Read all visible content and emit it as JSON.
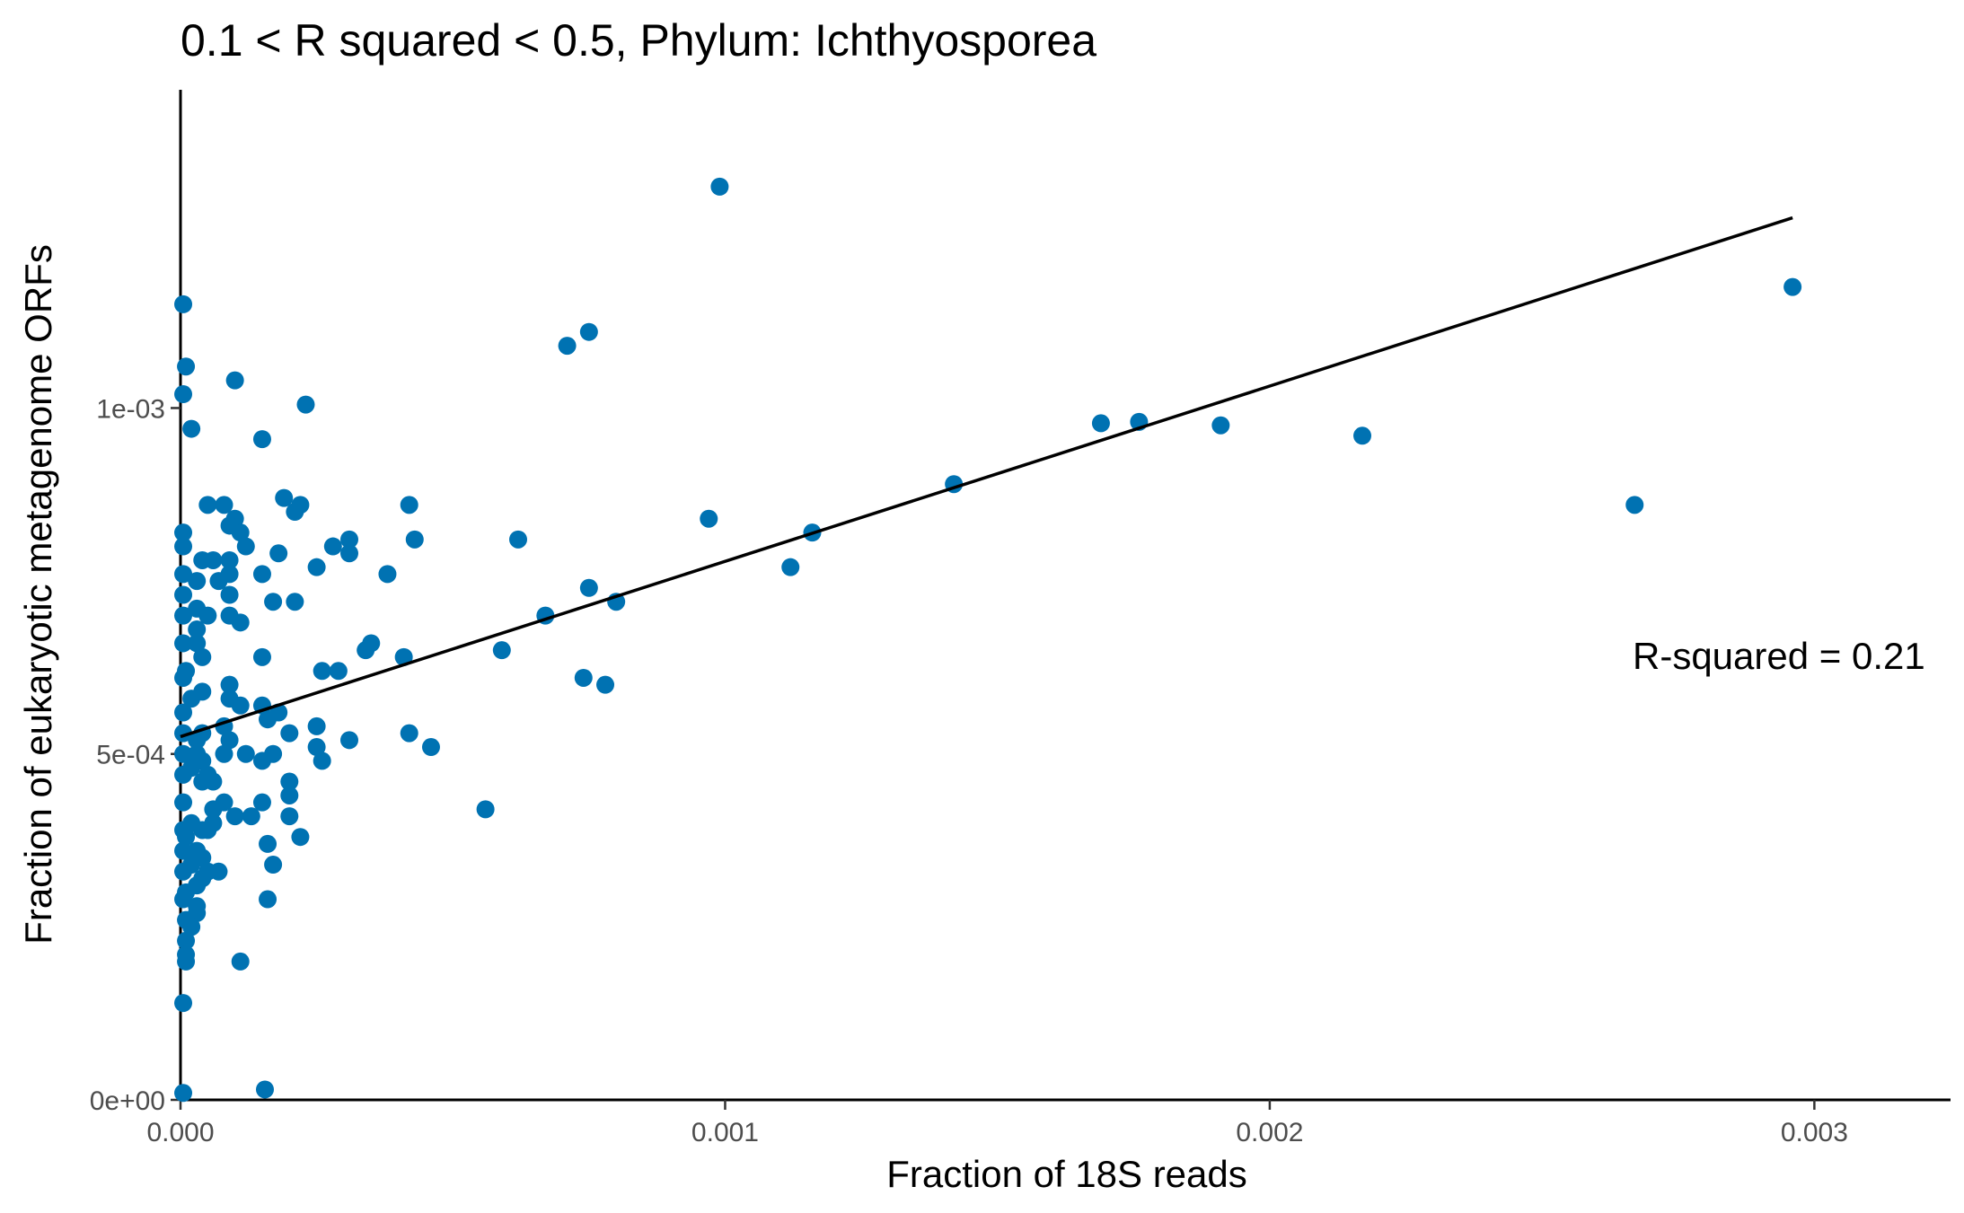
{
  "chart_data": {
    "type": "scatter",
    "title": "0.1 < R squared < 0.5, Phylum:  Ichthyosporea",
    "xlabel": "Fraction of 18S reads",
    "ylabel": "Fraction of eukaryotic metagenome ORFs",
    "xlim": [
      0,
      0.00325
    ],
    "ylim": [
      0,
      0.00146
    ],
    "x_ticks": [
      0,
      0.001,
      0.002,
      0.003
    ],
    "x_tick_labels": [
      "0.000",
      "0.001",
      "0.002",
      "0.003"
    ],
    "y_ticks": [
      0,
      0.0005,
      0.001
    ],
    "y_tick_labels": [
      "0e+00",
      "5e-04",
      "1e-03"
    ],
    "grid": false,
    "point_color": "#0072b2",
    "line_color": "#000000",
    "annotation": "R-squared =  0.21",
    "fit_line": {
      "x": [
        0,
        0.00296
      ],
      "y": [
        0.000525,
        0.001275
      ]
    },
    "points": [
      [
        0.00099,
        0.00132
      ],
      [
        0.00296,
        0.001175
      ],
      [
        0.00075,
        0.00111
      ],
      [
        0.00071,
        0.00109
      ],
      [
        0.00176,
        0.00098
      ],
      [
        0.00169,
        0.000978
      ],
      [
        0.00191,
        0.000975
      ],
      [
        0.00217,
        0.00096
      ],
      [
        0.00142,
        0.00089
      ],
      [
        0.00267,
        0.00086
      ],
      [
        0.00097,
        0.00084
      ],
      [
        0.00116,
        0.00082
      ],
      [
        0.00112,
        0.00077
      ],
      [
        0.00062,
        0.00081
      ],
      [
        0.0008,
        0.00072
      ],
      [
        0.00075,
        0.00074
      ],
      [
        0.00067,
        0.0007
      ],
      [
        0.00059,
        0.00065
      ],
      [
        0.00074,
        0.00061
      ],
      [
        0.00078,
        0.0006
      ],
      [
        0.00056,
        0.00042
      ],
      [
        0.00043,
        0.00081
      ],
      [
        0.00042,
        0.00086
      ],
      [
        0.00038,
        0.00076
      ],
      [
        0.00041,
        0.00064
      ],
      [
        0.00042,
        0.00053
      ],
      [
        0.00046,
        0.00051
      ],
      [
        0.00034,
        0.00065
      ],
      [
        0.00035,
        0.00066
      ],
      [
        0.00031,
        0.00081
      ],
      [
        0.00031,
        0.00079
      ],
      [
        0.00028,
        0.0008
      ],
      [
        0.00025,
        0.00077
      ],
      [
        0.00026,
        0.00062
      ],
      [
        0.00029,
        0.00062
      ],
      [
        0.00031,
        0.00052
      ],
      [
        0.00025,
        0.00054
      ],
      [
        0.00025,
        0.00051
      ],
      [
        0.00026,
        0.00049
      ],
      [
        0.00023,
        0.001005
      ],
      [
        0.00022,
        0.00086
      ],
      [
        0.00021,
        0.00085
      ],
      [
        0.00019,
        0.00087
      ],
      [
        0.00018,
        0.00079
      ],
      [
        0.00021,
        0.00072
      ],
      [
        0.00017,
        0.00072
      ],
      [
        0.00015,
        0.000955
      ],
      [
        0.0001,
        0.00104
      ],
      [
        0.00015,
        0.00076
      ],
      [
        0.00015,
        0.00064
      ],
      [
        0.00018,
        0.00056
      ],
      [
        0.00015,
        0.00057
      ],
      [
        0.00016,
        0.00055
      ],
      [
        0.0002,
        0.00053
      ],
      [
        0.00017,
        0.0005
      ],
      [
        0.00015,
        0.00049
      ],
      [
        0.0002,
        0.00046
      ],
      [
        0.0002,
        0.00044
      ],
      [
        0.00015,
        0.00043
      ],
      [
        0.0002,
        0.00041
      ],
      [
        0.00022,
        0.00038
      ],
      [
        0.00013,
        0.00041
      ],
      [
        0.00016,
        0.00037
      ],
      [
        0.00017,
        0.00034
      ],
      [
        0.00016,
        0.00029
      ],
      [
        0.00011,
        0.0002
      ],
      [
        0.000155,
        1.5e-05
      ],
      [
        0.00012,
        0.0008
      ],
      [
        0.00011,
        0.00082
      ],
      [
        0.0001,
        0.00084
      ],
      [
        9e-05,
        0.00083
      ],
      [
        8e-05,
        0.00086
      ],
      [
        5e-05,
        0.00086
      ],
      [
        9e-05,
        0.00078
      ],
      [
        6e-05,
        0.00078
      ],
      [
        4e-05,
        0.00078
      ],
      [
        9e-05,
        0.00076
      ],
      [
        7e-05,
        0.00075
      ],
      [
        9e-05,
        0.00073
      ],
      [
        9e-05,
        0.0007
      ],
      [
        0.00011,
        0.00069
      ],
      [
        5e-05,
        0.0007
      ],
      [
        3e-05,
        0.00071
      ],
      [
        3e-05,
        0.00068
      ],
      [
        3e-05,
        0.00066
      ],
      [
        4e-05,
        0.00064
      ],
      [
        1e-05,
        0.00062
      ],
      [
        4e-05,
        0.00059
      ],
      [
        9e-05,
        0.0006
      ],
      [
        9e-05,
        0.00058
      ],
      [
        0.00011,
        0.00057
      ],
      [
        2e-05,
        0.00058
      ],
      [
        8e-05,
        0.00054
      ],
      [
        9e-05,
        0.00052
      ],
      [
        4e-05,
        0.00053
      ],
      [
        3e-05,
        0.00052
      ],
      [
        8e-05,
        0.0005
      ],
      [
        0.00012,
        0.0005
      ],
      [
        3e-05,
        0.0005
      ],
      [
        4e-05,
        0.00049
      ],
      [
        2e-05,
        0.00048
      ],
      [
        5e-05,
        0.00047
      ],
      [
        4e-05,
        0.00046
      ],
      [
        6e-05,
        0.00046
      ],
      [
        8e-05,
        0.00043
      ],
      [
        6e-05,
        0.00042
      ],
      [
        0.0001,
        0.00041
      ],
      [
        6e-05,
        0.0004
      ],
      [
        5e-05,
        0.00039
      ],
      [
        4e-05,
        0.00039
      ],
      [
        2e-05,
        0.0004
      ],
      [
        1e-05,
        0.00038
      ],
      [
        3e-05,
        0.00036
      ],
      [
        4e-05,
        0.00035
      ],
      [
        2e-05,
        0.00034
      ],
      [
        7e-05,
        0.00033
      ],
      [
        5e-05,
        0.00033
      ],
      [
        4e-05,
        0.00032
      ],
      [
        3e-05,
        0.00031
      ],
      [
        1e-05,
        0.0003
      ],
      [
        3e-05,
        0.00028
      ],
      [
        3e-05,
        0.00027
      ],
      [
        1e-05,
        0.00026
      ],
      [
        2e-05,
        0.00025
      ],
      [
        1e-05,
        0.00023
      ],
      [
        1e-05,
        0.00021
      ],
      [
        1e-05,
        0.0002
      ],
      [
        3e-05,
        0.00075
      ],
      [
        5e-06,
        0.0008
      ],
      [
        5e-06,
        0.00082
      ],
      [
        5e-06,
        0.00076
      ],
      [
        5e-06,
        0.00073
      ],
      [
        5e-06,
        0.0007
      ],
      [
        5e-06,
        0.00066
      ],
      [
        5e-06,
        0.00061
      ],
      [
        5e-06,
        0.00056
      ],
      [
        5e-06,
        0.00053
      ],
      [
        5e-06,
        0.0005
      ],
      [
        5e-06,
        0.00047
      ],
      [
        5e-06,
        0.00043
      ],
      [
        5e-06,
        0.00039
      ],
      [
        5e-06,
        0.00036
      ],
      [
        5e-06,
        0.00033
      ],
      [
        5e-06,
        0.00029
      ],
      [
        5e-06,
        0.00014
      ],
      [
        5e-06,
        1e-05
      ],
      [
        5e-06,
        0.00115
      ],
      [
        5e-06,
        0.00102
      ],
      [
        1e-05,
        0.00106
      ],
      [
        2e-05,
        0.00097
      ]
    ]
  }
}
